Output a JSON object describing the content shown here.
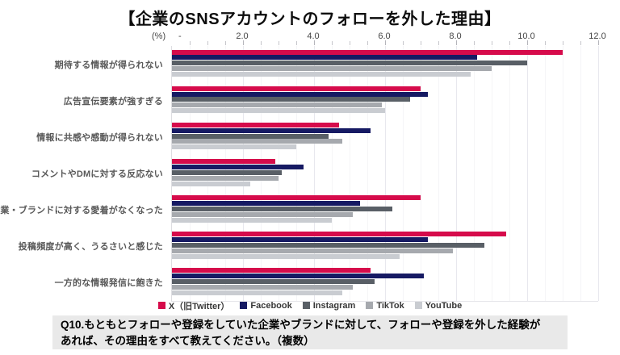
{
  "title": "【企業のSNSアカウントのフォローを外した理由】",
  "axis": {
    "unit_label": "(%)",
    "zero_label": "-",
    "ticks": [
      {
        "label": "2.0",
        "value": 2
      },
      {
        "label": "4.0",
        "value": 4
      },
      {
        "label": "6.0",
        "value": 6
      },
      {
        "label": "8.0",
        "value": 8
      },
      {
        "label": "10.0",
        "value": 10
      },
      {
        "label": "12.0",
        "value": 12
      }
    ]
  },
  "chart_data": {
    "type": "bar",
    "orientation": "horizontal",
    "title": "【企業のSNSアカウントのフォローを外した理由】",
    "xlabel": "(%)",
    "ylabel": "",
    "xlim": [
      0,
      12
    ],
    "grid": {
      "minor_step": 0.5,
      "major_step": 2
    },
    "legend_position": "bottom",
    "categories": [
      "期待する情報が得られない",
      "広告宣伝要素が強すぎる",
      "情報に共感や感動が得られない",
      "コメントやDMに対する反応ない",
      "企業・ブランドに対する愛着がなくなった",
      "投稿頻度が高く、うるさいと感じた",
      "一方的な情報発信に飽きた"
    ],
    "series": [
      {
        "name": "X（旧Twitter）",
        "legend_label": "X（旧Twitter）",
        "color": "#d60b4b",
        "values": [
          11.0,
          7.0,
          4.7,
          2.9,
          7.0,
          9.4,
          5.6
        ]
      },
      {
        "name": "Facebook",
        "legend_label": "Facebook",
        "color": "#161a63",
        "values": [
          8.6,
          7.2,
          5.6,
          3.7,
          5.3,
          7.2,
          7.1
        ]
      },
      {
        "name": "Instagram",
        "legend_label": "Instagram",
        "color": "#595f66",
        "values": [
          10.0,
          6.7,
          4.4,
          3.1,
          6.2,
          8.8,
          5.7
        ]
      },
      {
        "name": "TikTok",
        "legend_label": "TikTok",
        "color": "#a6a9ae",
        "values": [
          9.0,
          5.9,
          4.8,
          3.0,
          5.1,
          7.9,
          5.1
        ]
      },
      {
        "name": "YouTube",
        "legend_label": "YouTube",
        "color": "#c9ccd1",
        "values": [
          8.4,
          6.0,
          3.5,
          2.2,
          4.5,
          6.4,
          4.8
        ]
      }
    ]
  },
  "note": {
    "line1": "Q10.もともとフォローや登録をしていた企業やブランドに対して、フォローや登録を外した経験が",
    "line2": "あれば、その理由をすべて教えてください。（複数）"
  }
}
